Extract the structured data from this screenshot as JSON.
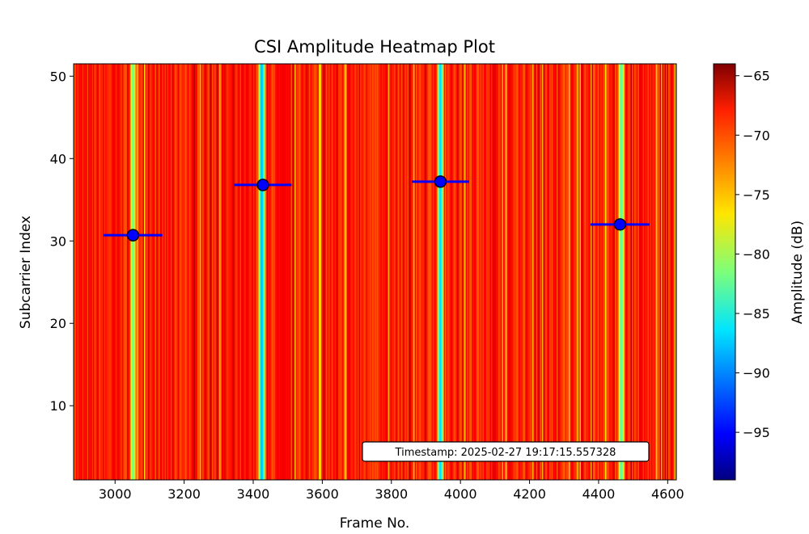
{
  "chart_data": {
    "type": "heatmap",
    "title": "CSI Amplitude Heatmap Plot",
    "xlabel": "Frame No.",
    "ylabel": "Subcarrier Index",
    "xlim": [
      2880,
      4625
    ],
    "ylim": [
      1,
      51.5
    ],
    "x_ticks": [
      3000,
      3200,
      3400,
      3600,
      3800,
      4000,
      4200,
      4400,
      4600
    ],
    "y_ticks": [
      10,
      20,
      30,
      40,
      50
    ],
    "colormap": "jet",
    "colorbar": {
      "label": "Amplitude (dB)",
      "range": [
        -99,
        -64
      ],
      "ticks": [
        -65,
        -70,
        -75,
        -80,
        -85,
        -90,
        -95
      ]
    },
    "background_level_db": -69.5,
    "bands": [
      {
        "x_center": 3052,
        "width": 18,
        "level_db": -82
      },
      {
        "x_center": 3425,
        "width": 22,
        "level_db": -88
      },
      {
        "x_center": 3942,
        "width": 20,
        "level_db": -87
      },
      {
        "x_center": 4466,
        "width": 20,
        "level_db": -83
      }
    ],
    "markers": [
      {
        "x": 3052,
        "y": 30.7,
        "xerr": 85
      },
      {
        "x": 3428,
        "y": 36.8,
        "xerr": 83
      },
      {
        "x": 3942,
        "y": 37.2,
        "xerr": 83
      },
      {
        "x": 4462,
        "y": 32.0,
        "xerr": 85
      }
    ],
    "annotation": "Timestamp: 2025-02-27 19:17:15.557328",
    "grid": false
  }
}
